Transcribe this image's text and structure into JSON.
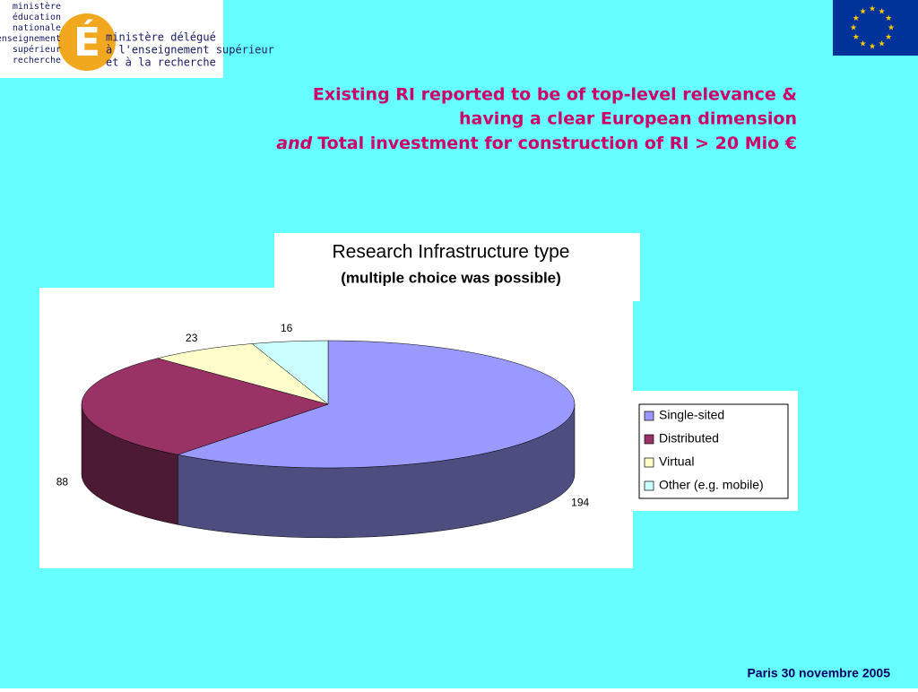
{
  "logo": {
    "left": [
      "ministère",
      "éducation",
      "nationale",
      "enseignement",
      "supérieur",
      "recherche"
    ],
    "right": [
      "ministère délégué",
      "à l'enseignement supérieur",
      "et à la recherche"
    ]
  },
  "heading": [
    "Existing RI reported to be of top-level relevance &",
    "having a clear European dimension"
  ],
  "heading_em": "and",
  "heading_rest": "Total investment for construction of RI > 20 Mio €",
  "footer": "Paris 30 novembre 2005",
  "chart_data": {
    "type": "pie",
    "title": "Research Infrastructure type",
    "subtitle": "(multiple choice was possible)",
    "categories": [
      "Single-sited",
      "Distributed",
      "Virtual",
      "Other (e.g. mobile)"
    ],
    "values": [
      194,
      88,
      23,
      16
    ],
    "colors": [
      "#9999ff",
      "#993366",
      "#ffffcc",
      "#ccffff"
    ],
    "legend": "right"
  }
}
